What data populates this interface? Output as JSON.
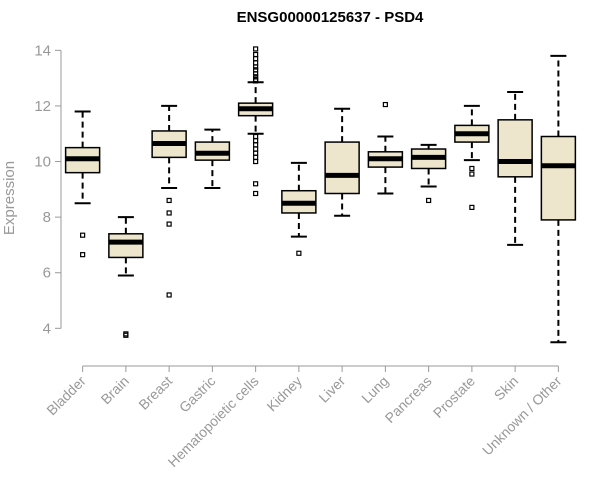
{
  "chart_data": {
    "type": "boxplot",
    "title": "ENSG00000125637 - PSD4",
    "xlabel": "",
    "ylabel": "Expression",
    "ylim": [
      3.4,
      14.3
    ],
    "yticks": [
      4,
      6,
      8,
      10,
      12,
      14
    ],
    "grid": false,
    "legend": "none",
    "box_color": "#ede6cc",
    "line_color": "#000000",
    "categories": [
      "Bladder",
      "Brain",
      "Breast",
      "Gastric",
      "Hematopoietic cells",
      "Kidney",
      "Liver",
      "Lung",
      "Pancreas",
      "Prostate",
      "Skin",
      "Unknown / Other"
    ],
    "boxes": [
      {
        "category": "Bladder",
        "whisker_low": 8.5,
        "q1": 9.6,
        "median": 10.1,
        "q3": 10.5,
        "whisker_high": 11.8,
        "outliers": [
          7.35,
          6.65
        ]
      },
      {
        "category": "Brain",
        "whisker_low": 5.9,
        "q1": 6.55,
        "median": 7.1,
        "q3": 7.4,
        "whisker_high": 8.0,
        "outliers": [
          3.8,
          3.75
        ]
      },
      {
        "category": "Breast",
        "whisker_low": 9.05,
        "q1": 10.15,
        "median": 10.65,
        "q3": 11.1,
        "whisker_high": 12.0,
        "outliers": [
          8.6,
          8.15,
          7.75,
          5.2
        ]
      },
      {
        "category": "Gastric",
        "whisker_low": 9.05,
        "q1": 10.05,
        "median": 10.3,
        "q3": 10.7,
        "whisker_high": 11.15,
        "outliers": []
      },
      {
        "category": "Hematopoietic cells",
        "whisker_low": 11.0,
        "q1": 11.65,
        "median": 11.9,
        "q3": 12.1,
        "whisker_high": 12.85,
        "outliers": [
          14.05,
          13.85,
          13.7,
          13.55,
          13.4,
          13.3,
          13.15,
          13.05,
          12.95,
          12.9,
          10.9,
          10.75,
          10.6,
          10.45,
          10.3,
          10.15,
          10.0,
          9.2,
          8.85
        ]
      },
      {
        "category": "Kidney",
        "whisker_low": 7.3,
        "q1": 8.15,
        "median": 8.5,
        "q3": 8.95,
        "whisker_high": 9.95,
        "outliers": [
          6.7
        ]
      },
      {
        "category": "Liver",
        "whisker_low": 8.05,
        "q1": 8.85,
        "median": 9.5,
        "q3": 10.7,
        "whisker_high": 11.9,
        "outliers": []
      },
      {
        "category": "Lung",
        "whisker_low": 8.85,
        "q1": 9.8,
        "median": 10.1,
        "q3": 10.35,
        "whisker_high": 10.9,
        "outliers": [
          12.05
        ]
      },
      {
        "category": "Pancreas",
        "whisker_low": 9.1,
        "q1": 9.75,
        "median": 10.15,
        "q3": 10.45,
        "whisker_high": 10.6,
        "outliers": [
          8.6
        ]
      },
      {
        "category": "Prostate",
        "whisker_low": 10.05,
        "q1": 10.7,
        "median": 11.0,
        "q3": 11.3,
        "whisker_high": 12.0,
        "outliers": [
          9.75,
          9.55,
          8.35
        ]
      },
      {
        "category": "Skin",
        "whisker_low": 7.0,
        "q1": 9.45,
        "median": 10.0,
        "q3": 11.5,
        "whisker_high": 12.5,
        "outliers": []
      },
      {
        "category": "Unknown / Other",
        "whisker_low": 3.5,
        "q1": 7.9,
        "median": 9.85,
        "q3": 10.9,
        "whisker_high": 13.8,
        "outliers": []
      }
    ]
  }
}
